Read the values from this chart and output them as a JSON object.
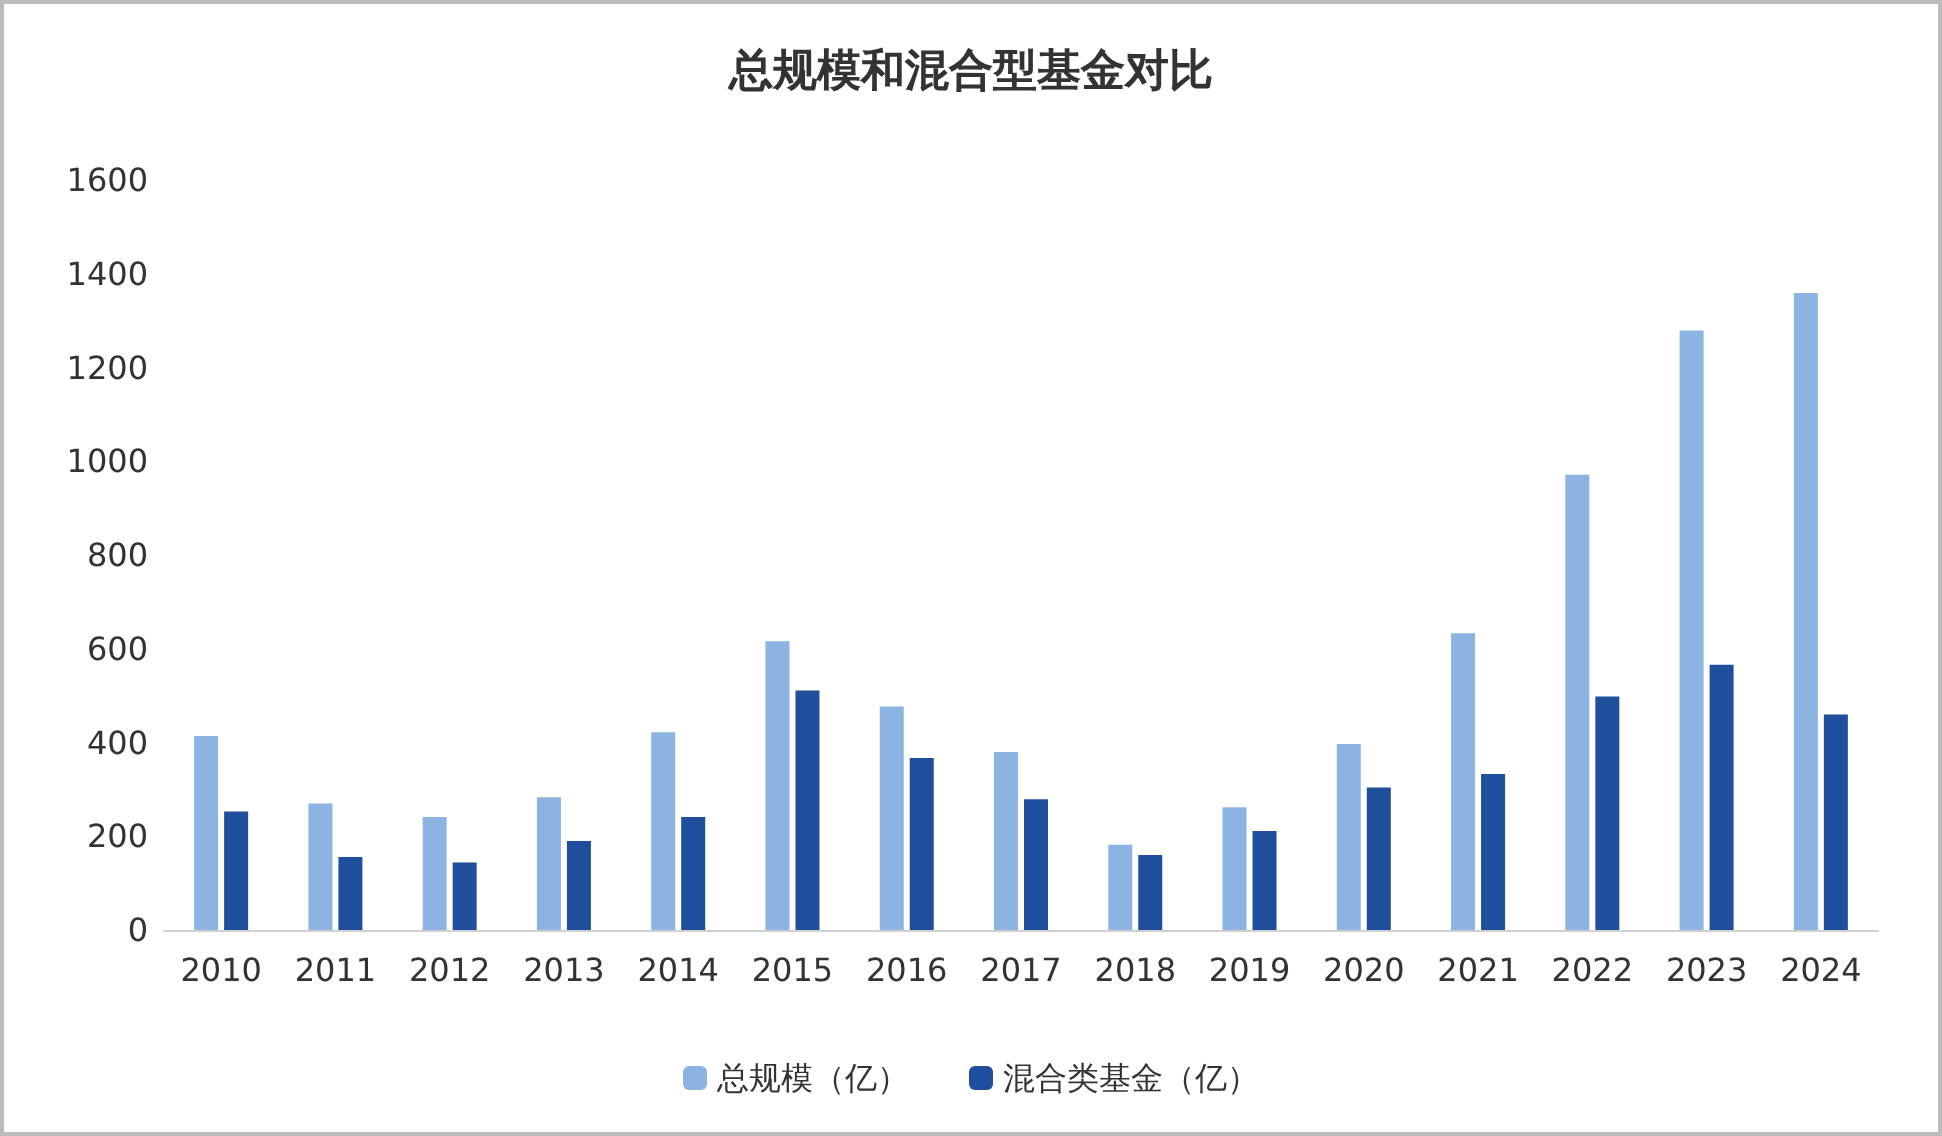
{
  "chart_data": {
    "type": "bar",
    "title": "总规模和混合型基金对比",
    "categories": [
      "2010",
      "2011",
      "2012",
      "2013",
      "2014",
      "2015",
      "2016",
      "2017",
      "2018",
      "2019",
      "2020",
      "2021",
      "2022",
      "2023",
      "2024"
    ],
    "series": [
      {
        "name": "总规模（亿）",
        "color": "#8db3e2",
        "values": [
          414,
          270,
          241,
          283,
          422,
          616,
          477,
          380,
          182,
          262,
          397,
          633,
          971,
          1279,
          1359
        ]
      },
      {
        "name": "混合类基金（亿）",
        "color": "#1f4e9c",
        "values": [
          253,
          156,
          144,
          190,
          241,
          511,
          367,
          279,
          160,
          211,
          304,
          333,
          498,
          566,
          460
        ]
      }
    ],
    "ylim": [
      0,
      1600
    ],
    "yticks": [
      0,
      200,
      400,
      600,
      800,
      1000,
      1200,
      1400,
      1600
    ],
    "grid": false,
    "legend": "bottom"
  }
}
